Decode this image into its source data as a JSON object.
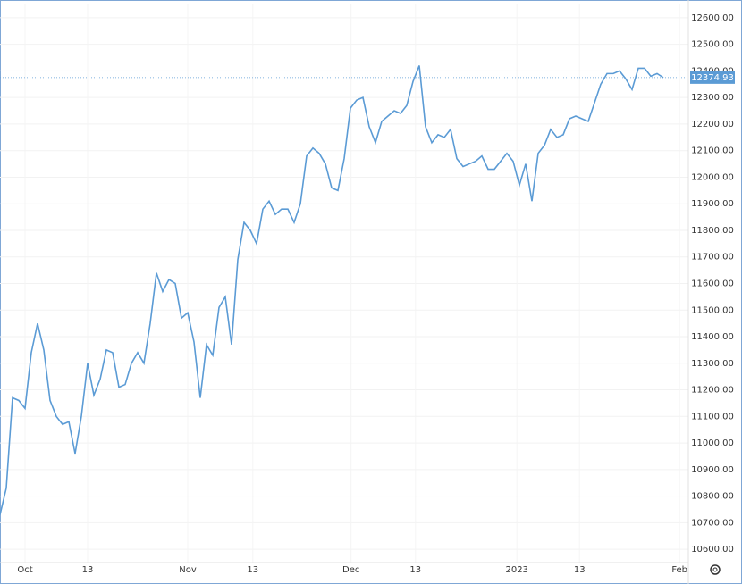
{
  "chart_data": {
    "type": "line",
    "series": [
      {
        "name": null,
        "color": "#5b9bd5",
        "values": [
          10730,
          10830,
          11170,
          11160,
          11130,
          11340,
          11450,
          11350,
          11160,
          11100,
          11070,
          11080,
          10960,
          11100,
          11300,
          11180,
          11240,
          11350,
          11340,
          11210,
          11220,
          11300,
          11340,
          11300,
          11450,
          11640,
          11570,
          11615,
          11600,
          11470,
          11490,
          11380,
          11170,
          11370,
          11330,
          11510,
          11550,
          11370,
          11690,
          11830,
          11800,
          11750,
          11880,
          11910,
          11860,
          11880,
          11880,
          11830,
          11900,
          12080,
          12110,
          12090,
          12050,
          11960,
          11950,
          12070,
          12260,
          12290,
          12300,
          12190,
          12130,
          12210,
          12230,
          12250,
          12240,
          12270,
          12360,
          12420,
          12190,
          12130,
          12160,
          12150,
          12180,
          12070,
          12040,
          12050,
          12060,
          12080,
          12030,
          12030,
          12060,
          12090,
          12060,
          11970,
          12050,
          11910,
          12090,
          12120,
          12180,
          12150,
          12160,
          12220,
          12230,
          12220,
          12210,
          12280,
          12350,
          12390,
          12390,
          12400,
          12370,
          12330,
          12410,
          12410,
          12380,
          12390,
          12374.93
        ]
      }
    ],
    "last_value": 12374.93,
    "xlim": [
      0,
      110
    ],
    "xticks": [
      {
        "value": 4,
        "label": "Oct"
      },
      {
        "value": 14,
        "label": "13"
      },
      {
        "value": 30,
        "label": "Nov"
      },
      {
        "value": 40.4,
        "label": "13"
      },
      {
        "value": 56.1,
        "label": "Dec"
      },
      {
        "value": 66.4,
        "label": "13"
      },
      {
        "value": 82.6,
        "label": "2023"
      },
      {
        "value": 92.6,
        "label": "13"
      },
      {
        "value": 108.6,
        "label": "Feb"
      }
    ],
    "ylim": [
      10550,
      12650
    ],
    "yticks": [
      {
        "value": 10600,
        "label": "10600.00"
      },
      {
        "value": 10700,
        "label": "10700.00"
      },
      {
        "value": 10800,
        "label": "10800.00"
      },
      {
        "value": 10900,
        "label": "10900.00"
      },
      {
        "value": 11000,
        "label": "11000.00"
      },
      {
        "value": 11100,
        "label": "11100.00"
      },
      {
        "value": 11200,
        "label": "11200.00"
      },
      {
        "value": 11300,
        "label": "11300.00"
      },
      {
        "value": 11400,
        "label": "11400.00"
      },
      {
        "value": 11500,
        "label": "11500.00"
      },
      {
        "value": 11600,
        "label": "11600.00"
      },
      {
        "value": 11700,
        "label": "11700.00"
      },
      {
        "value": 11800,
        "label": "11800.00"
      },
      {
        "value": 11900,
        "label": "11900.00"
      },
      {
        "value": 12000,
        "label": "12000.00"
      },
      {
        "value": 12100,
        "label": "12100.00"
      },
      {
        "value": 12200,
        "label": "12200.00"
      },
      {
        "value": 12300,
        "label": "12300.00"
      },
      {
        "value": 12400,
        "label": "12400.00"
      },
      {
        "value": 12500,
        "label": "12500.00"
      },
      {
        "value": 12600,
        "label": "12600.00"
      }
    ],
    "grid": true
  }
}
